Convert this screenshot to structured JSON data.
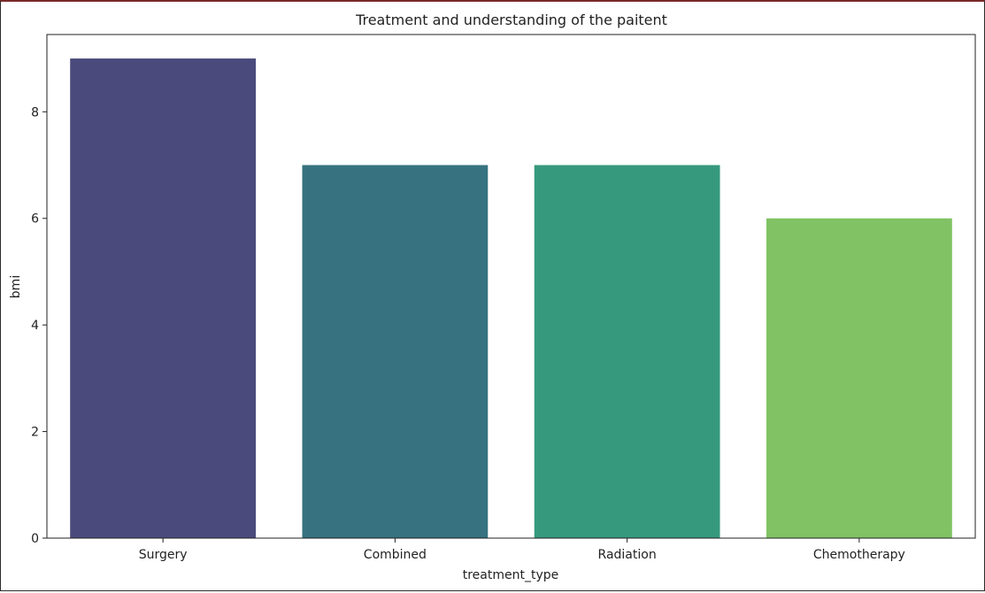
{
  "chart_data": {
    "type": "bar",
    "title": "Treatment and understanding of the paitent",
    "xlabel": "treatment_type",
    "ylabel": "bmi",
    "categories": [
      "Surgery",
      "Combined",
      "Radiation",
      "Chemotherapy"
    ],
    "values": [
      9,
      7,
      7,
      6
    ],
    "colors": [
      "#4a4a7c",
      "#367280",
      "#36997e",
      "#80c264"
    ],
    "ylim": [
      0,
      9.45
    ],
    "yticks": [
      0,
      2,
      4,
      6,
      8
    ],
    "ytick_labels": [
      "0",
      "2",
      "4",
      "6",
      "8"
    ],
    "grid": false,
    "legend": "none"
  }
}
